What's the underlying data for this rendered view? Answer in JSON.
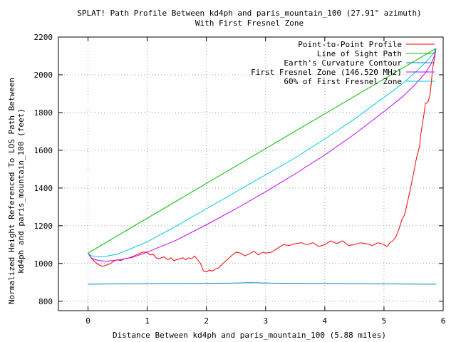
{
  "chart_data": {
    "type": "line",
    "title": "SPLAT! Path Profile Between kd4ph and paris_mountain_100 (27.91° azimuth)",
    "subtitle": "With First Fresnel Zone",
    "xlabel": "Distance Between kd4ph and paris_mountain_100 (5.88 miles)",
    "ylabel_line1": "Normalized Height Referenced To LOS Path Between",
    "ylabel_line2": "kd4ph and paris_mountain_100 (feet)",
    "xlim": [
      -0.5,
      6
    ],
    "ylim": [
      750,
      2200
    ],
    "xticks": [
      "0",
      "1",
      "2",
      "3",
      "4",
      "5",
      "6"
    ],
    "yticks": [
      "800",
      "1000",
      "1200",
      "1400",
      "1600",
      "1800",
      "2000",
      "2200"
    ],
    "grid": true,
    "legend_position": "top-right",
    "series": [
      {
        "name": "Point-to-Point Profile",
        "color": "#ff0000",
        "x": [
          0,
          0.08,
          0.15,
          0.2,
          0.25,
          0.3,
          0.38,
          0.45,
          0.5,
          0.55,
          0.62,
          0.7,
          0.78,
          0.85,
          0.92,
          1.0,
          1.05,
          1.1,
          1.15,
          1.2,
          1.28,
          1.35,
          1.4,
          1.45,
          1.5,
          1.55,
          1.6,
          1.65,
          1.7,
          1.75,
          1.8,
          1.85,
          1.9,
          1.95,
          2.0,
          2.05,
          2.1,
          2.15,
          2.2,
          2.28,
          2.35,
          2.42,
          2.5,
          2.58,
          2.65,
          2.72,
          2.8,
          2.88,
          2.95,
          3.0,
          3.1,
          3.2,
          3.3,
          3.4,
          3.5,
          3.6,
          3.7,
          3.8,
          3.9,
          4.0,
          4.1,
          4.2,
          4.3,
          4.4,
          4.5,
          4.6,
          4.7,
          4.8,
          4.9,
          5.0,
          5.05,
          5.1,
          5.15,
          5.2,
          5.25,
          5.3,
          5.35,
          5.4,
          5.45,
          5.5,
          5.55,
          5.6,
          5.62,
          5.65,
          5.68,
          5.7,
          5.72,
          5.75,
          5.78,
          5.8,
          5.82,
          5.85,
          5.88
        ],
        "y": [
          1055,
          1020,
          1000,
          990,
          985,
          990,
          1000,
          1015,
          1020,
          1015,
          1025,
          1030,
          1040,
          1050,
          1060,
          1060,
          1045,
          1050,
          1030,
          1025,
          1035,
          1020,
          1030,
          1015,
          1020,
          1025,
          1030,
          1020,
          1030,
          1025,
          1040,
          1020,
          1000,
          960,
          955,
          965,
          960,
          970,
          975,
          1000,
          1020,
          1040,
          1060,
          1055,
          1040,
          1050,
          1065,
          1045,
          1060,
          1055,
          1060,
          1080,
          1100,
          1095,
          1105,
          1110,
          1100,
          1110,
          1090,
          1100,
          1120,
          1105,
          1120,
          1095,
          1100,
          1110,
          1105,
          1095,
          1110,
          1100,
          1090,
          1110,
          1120,
          1140,
          1180,
          1230,
          1260,
          1330,
          1400,
          1480,
          1560,
          1620,
          1680,
          1740,
          1800,
          1850,
          1850,
          1860,
          1900,
          1960,
          2030,
          2080,
          2140
        ]
      },
      {
        "name": "Line of Sight Path",
        "color": "#00c000",
        "x": [
          0,
          5.88
        ],
        "y": [
          1055,
          2140
        ]
      },
      {
        "name": "Earth's Curvature Contour",
        "color": "#0080c0",
        "x": [
          0,
          0.5,
          1.0,
          1.5,
          2.0,
          2.5,
          2.75,
          3.0,
          3.5,
          4.0,
          4.5,
          5.0,
          5.5,
          5.88
        ],
        "y": [
          890,
          892,
          893,
          894,
          895,
          896,
          898,
          896,
          895,
          894,
          893,
          892,
          891,
          890
        ]
      },
      {
        "name": "First Fresnel Zone (146.520 MHz)",
        "color": "#c000ff",
        "x": [
          0,
          0.05,
          0.1,
          0.2,
          0.3,
          0.5,
          0.75,
          1.0,
          1.5,
          2.0,
          2.5,
          3.0,
          3.5,
          4.0,
          4.5,
          5.0,
          5.3,
          5.5,
          5.7,
          5.8,
          5.85,
          5.88
        ],
        "y": [
          1055,
          1030,
          1022,
          1015,
          1012,
          1018,
          1032,
          1060,
          1125,
          1205,
          1290,
          1380,
          1475,
          1575,
          1685,
          1805,
          1880,
          1940,
          2010,
          2060,
          2100,
          2140
        ]
      },
      {
        "name": "60% of First Fresnel Zone",
        "color": "#00c8e0",
        "x": [
          0,
          0.05,
          0.1,
          0.2,
          0.3,
          0.5,
          0.75,
          1.0,
          1.5,
          2.0,
          2.5,
          3.0,
          3.5,
          4.0,
          4.5,
          5.0,
          5.3,
          5.5,
          5.7,
          5.8,
          5.85,
          5.88
        ],
        "y": [
          1055,
          1042,
          1038,
          1035,
          1038,
          1050,
          1082,
          1115,
          1200,
          1290,
          1380,
          1470,
          1560,
          1660,
          1765,
          1880,
          1950,
          2005,
          2065,
          2100,
          2120,
          2140
        ]
      }
    ]
  }
}
